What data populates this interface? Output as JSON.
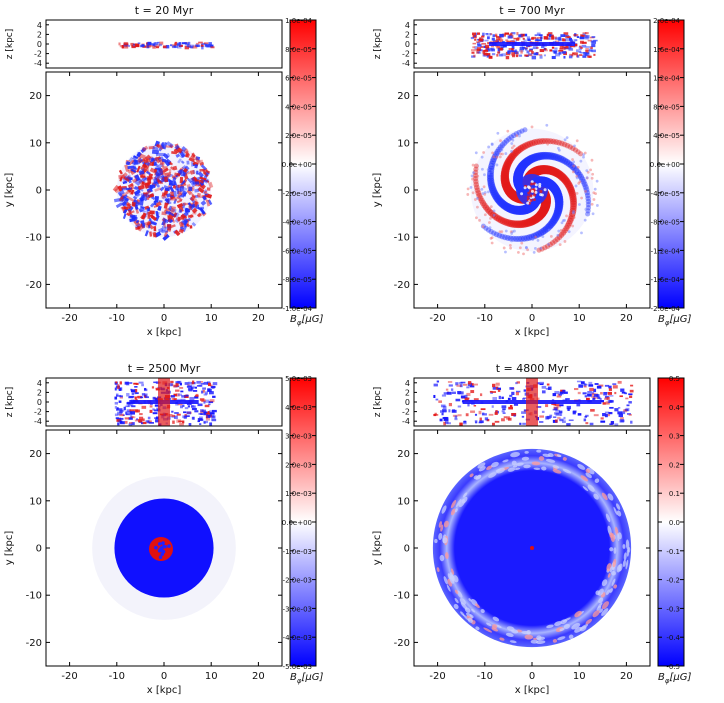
{
  "chart_data": {
    "type": "heatmap",
    "colormap": {
      "low": "#0000ff",
      "mid": "#ffffff",
      "high": "#ff0000"
    },
    "colorbar_label_main": "B",
    "colorbar_label_sub": "φ",
    "colorbar_label_unit": "[μG]",
    "xlabel": "x [kpc]",
    "ylabel": "y [kpc]",
    "zlabel": "z [kpc]",
    "xlim": [
      -25,
      25
    ],
    "ylim": [
      -25,
      25
    ],
    "zlim": [
      -5,
      5
    ],
    "x_ticks": [
      "-20",
      "-10",
      "0",
      "10",
      "20"
    ],
    "y_ticks": [
      "20",
      "10",
      "0",
      "-10",
      "-20"
    ],
    "z_ticks": [
      "4",
      "2",
      "0",
      "-2",
      "-4"
    ],
    "panels": [
      {
        "title": "t = 20 Myr",
        "colorbar_ticks": [
          "1.0e-04",
          "8.0e-05",
          "6.0e-05",
          "4.0e-05",
          "2.0e-05",
          "0.0e+00",
          "-2.0e-05",
          "-4.0e-05",
          "-6.0e-05",
          "-8.0e-05",
          "-1.0e-04"
        ],
        "disk_radius_kpc": 10,
        "edge_on_half_thickness_kpc": 0.5,
        "pattern": "turbulent"
      },
      {
        "title": "t = 700 Myr",
        "colorbar_ticks": [
          "2.0e-04",
          "1.6e-04",
          "1.2e-04",
          "8.0e-05",
          "4.0e-05",
          "0.0e+00",
          "-4.0e-05",
          "-8.0e-05",
          "-1.2e-04",
          "-1.6e-04",
          "-2.0e-04"
        ],
        "disk_radius_kpc": 13,
        "edge_on_half_thickness_kpc": 2.5,
        "pattern": "spiral"
      },
      {
        "title": "t = 2500 Myr",
        "colorbar_ticks": [
          "5.0e-03",
          "4.0e-03",
          "3.0e-03",
          "2.0e-03",
          "1.0e-03",
          "0.0e+00",
          "-1.0e-03",
          "-2.0e-03",
          "-3.0e-03",
          "-4.0e-03",
          "-5.0e-03"
        ],
        "disk_radius_kpc": 10.5,
        "edge_on_half_thickness_kpc": 4.5,
        "pattern": "uniform-negative"
      },
      {
        "title": "t = 4800 Myr",
        "colorbar_ticks": [
          "0.5",
          "0.4",
          "0.3",
          "0.2",
          "0.1",
          "0.0",
          "-0.1",
          "-0.2",
          "-0.3",
          "-0.4",
          "-0.5"
        ],
        "disk_radius_kpc": 21,
        "edge_on_half_thickness_kpc": 4.5,
        "pattern": "ring-negative"
      }
    ]
  }
}
